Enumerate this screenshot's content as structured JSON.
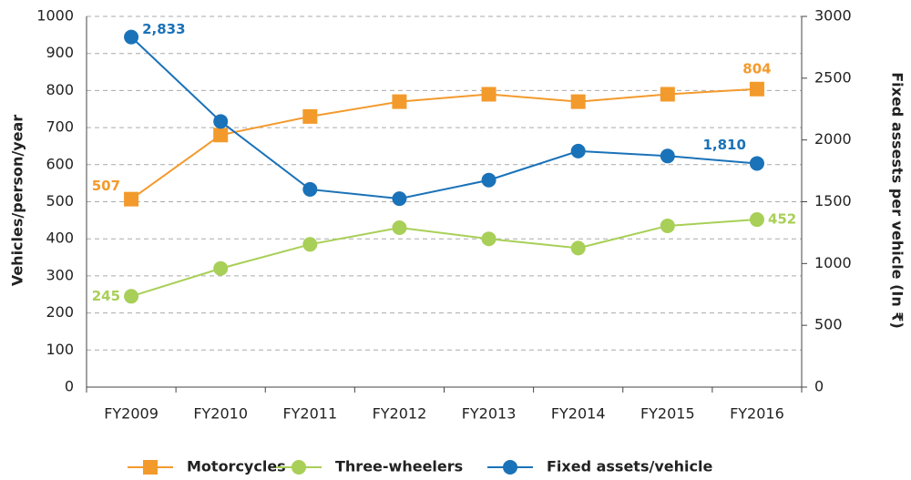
{
  "chart_data": {
    "type": "line",
    "categories": [
      "FY2009",
      "FY2010",
      "FY2011",
      "FY2012",
      "FY2013",
      "FY2014",
      "FY2015",
      "FY2016"
    ],
    "series": [
      {
        "name": "Motorcycles",
        "color": "#f39a2c",
        "marker": "square",
        "values": [
          507,
          680,
          730,
          770,
          790,
          770,
          790,
          804
        ],
        "value_labels": [
          "507",
          null,
          null,
          null,
          null,
          null,
          null,
          "804"
        ]
      },
      {
        "name": "Three-wheelers",
        "color": "#a8cf57",
        "marker": "circle",
        "values": [
          245,
          320,
          385,
          430,
          400,
          375,
          435,
          452
        ],
        "value_labels": [
          "245",
          null,
          null,
          null,
          null,
          null,
          null,
          "452"
        ]
      },
      {
        "name": "Fixed assets/vehicle",
        "color": "#1a72b8",
        "marker": "circle",
        "axis": "y2",
        "values": [
          2833,
          2150,
          1600,
          1525,
          1675,
          1910,
          1870,
          1810
        ],
        "value_labels": [
          "2,833",
          null,
          null,
          null,
          null,
          null,
          null,
          "1,810"
        ]
      }
    ],
    "ylabel": "Vehicles/person/year",
    "y2label": "Fixed assests per vehicle (In ₹)",
    "ylim": [
      0,
      1000
    ],
    "yticks": [
      0,
      100,
      200,
      300,
      400,
      500,
      600,
      700,
      800,
      900,
      1000
    ],
    "y2lim": [
      0,
      3000
    ],
    "y2ticks": [
      0,
      500,
      1000,
      1500,
      2000,
      2500,
      3000
    ],
    "grid": true,
    "legend": "bottom"
  }
}
